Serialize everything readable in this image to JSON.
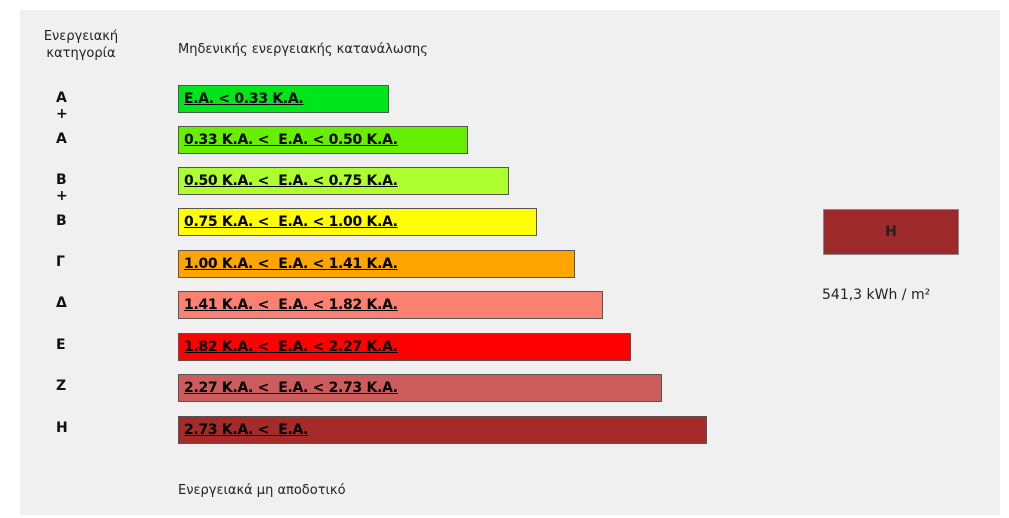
{
  "header": {
    "category_label": "Ενεργειακή κατηγορία",
    "top_label": "Μηδενικής ενεργειακής κατανάλωσης"
  },
  "rows": [
    {
      "category": "Α +",
      "range": "Ε.Α. < 0.33 Κ.Α."
    },
    {
      "category": "Α",
      "range": "0.33 Κ.Α. <  Ε.Α. < 0.50 Κ.Α."
    },
    {
      "category": "Β +",
      "range": "0.50 Κ.Α. <  Ε.Α. < 0.75 Κ.Α."
    },
    {
      "category": "Β",
      "range": "0.75 Κ.Α. <  Ε.Α. < 1.00 Κ.Α."
    },
    {
      "category": "Γ",
      "range": "1.00 Κ.Α. <  Ε.Α. < 1.41 Κ.Α."
    },
    {
      "category": "Δ",
      "range": "1.41 Κ.Α. <  Ε.Α. < 1.82 Κ.Α."
    },
    {
      "category": "Ε",
      "range": "1.82 Κ.Α. <  Ε.Α. < 2.27 Κ.Α."
    },
    {
      "category": "Ζ",
      "range": "2.27 Κ.Α. <  Ε.Α. < 2.73 Κ.Α."
    },
    {
      "category": "Η",
      "range": "2.73 Κ.Α. <  Ε.Α."
    }
  ],
  "result": {
    "category": "Η",
    "value": "541,3 kWh / m²"
  },
  "footer": "Ενεργειακά μη αποδοτικό"
}
